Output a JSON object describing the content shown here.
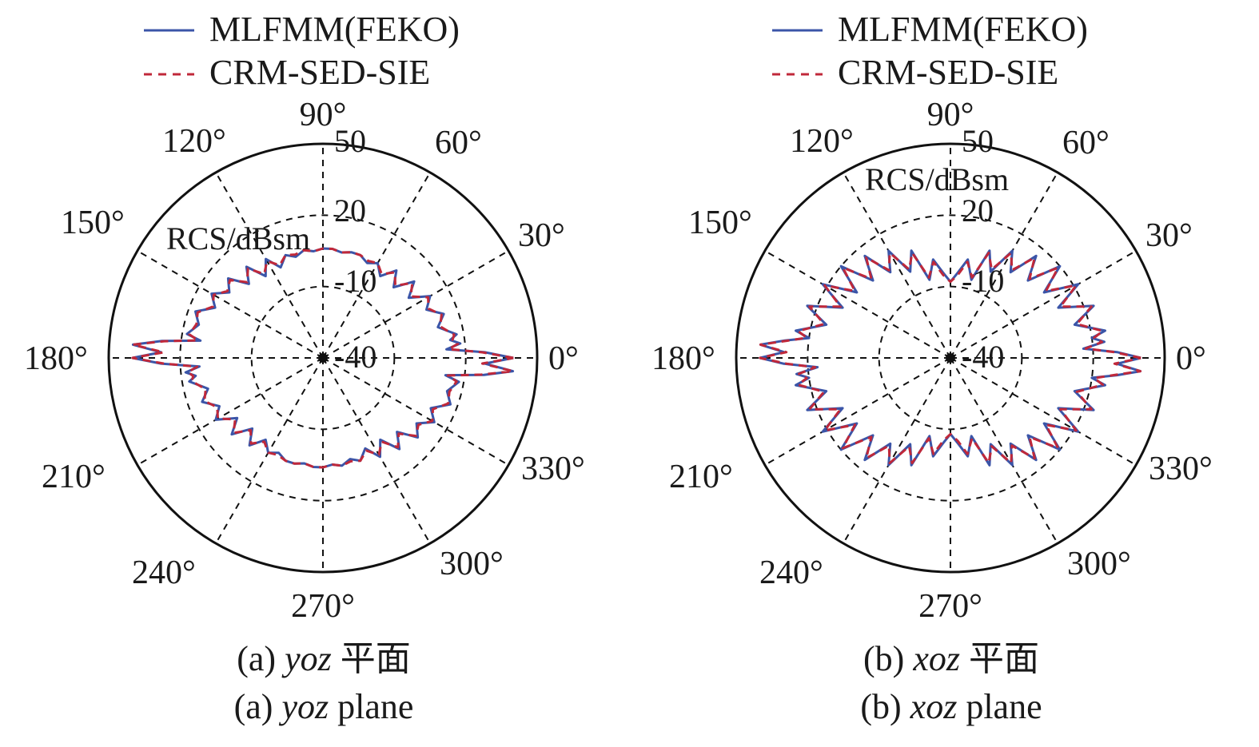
{
  "colors": {
    "mlfmm": "#3b55a8",
    "crm": "#c0283a",
    "axis": "#111111",
    "grid": "#111111"
  },
  "legend": {
    "mlfmm_label": "MLFMM(FEKO)",
    "crm_label": "CRM-SED-SIE"
  },
  "chart_data": [
    {
      "type": "polar-line",
      "id": "a",
      "angle_ticks": [
        "0°",
        "30°",
        "60°",
        "90°",
        "120°",
        "150°",
        "180°",
        "210°",
        "240°",
        "270°",
        "300°",
        "330°"
      ],
      "angle_values": [
        0,
        30,
        60,
        90,
        120,
        150,
        180,
        210,
        240,
        270,
        300,
        330
      ],
      "radial_ticks": [
        "-40",
        "-10",
        "20",
        "50"
      ],
      "radial_values": [
        -40,
        -10,
        20,
        50
      ],
      "radial_range": [
        -40,
        50
      ],
      "radial_label": "RCS/dBsm",
      "grid": true,
      "legend_position": "top",
      "series": [
        {
          "name": "MLFMM(FEKO)",
          "angle_deg": [
            0,
            2,
            4,
            6,
            8,
            10,
            15,
            20,
            25,
            30,
            35,
            40,
            45,
            50,
            55,
            60,
            65,
            70,
            75,
            80,
            85,
            90,
            95,
            100,
            105,
            110,
            115,
            120,
            125,
            130,
            135,
            140,
            145,
            150,
            155,
            160,
            165,
            170,
            172,
            174,
            176,
            178,
            180,
            182,
            184,
            186,
            188,
            190,
            195,
            200,
            205,
            210,
            215,
            220,
            225,
            230,
            235,
            240,
            245,
            250,
            255,
            260,
            265,
            270,
            275,
            280,
            285,
            290,
            295,
            300,
            305,
            310,
            315,
            320,
            325,
            330,
            335,
            340,
            345,
            350,
            352,
            354,
            356,
            358,
            360
          ],
          "rcs_dbsm": [
            40,
            28,
            12,
            18,
            14,
            17,
            10,
            14,
            8,
            12,
            4,
            10,
            2,
            8,
            2,
            6,
            4,
            6,
            6,
            5,
            6,
            6,
            5,
            6,
            4,
            6,
            2,
            8,
            2,
            10,
            4,
            12,
            8,
            14,
            10,
            17,
            14,
            18,
            12,
            28,
            40,
            28,
            40,
            28,
            12,
            18,
            14,
            17,
            10,
            14,
            8,
            12,
            4,
            10,
            2,
            8,
            2,
            6,
            4,
            6,
            6,
            5,
            6,
            6,
            5,
            6,
            4,
            6,
            2,
            8,
            2,
            10,
            4,
            12,
            8,
            14,
            10,
            17,
            14,
            18,
            12,
            28,
            40,
            28,
            40
          ]
        },
        {
          "name": "CRM-SED-SIE",
          "angle_deg": [
            0,
            2,
            4,
            6,
            8,
            10,
            15,
            20,
            25,
            30,
            35,
            40,
            45,
            50,
            55,
            60,
            65,
            70,
            75,
            80,
            85,
            90,
            95,
            100,
            105,
            110,
            115,
            120,
            125,
            130,
            135,
            140,
            145,
            150,
            155,
            160,
            165,
            170,
            172,
            174,
            176,
            178,
            180,
            182,
            184,
            186,
            188,
            190,
            195,
            200,
            205,
            210,
            215,
            220,
            225,
            230,
            235,
            240,
            245,
            250,
            255,
            260,
            265,
            270,
            275,
            280,
            285,
            290,
            295,
            300,
            305,
            310,
            315,
            320,
            325,
            330,
            335,
            340,
            345,
            350,
            352,
            354,
            356,
            358,
            360
          ],
          "rcs_dbsm": [
            40,
            27,
            13,
            17,
            15,
            16,
            11,
            13,
            9,
            11,
            5,
            9,
            3,
            7,
            3,
            6,
            5,
            6,
            6,
            5,
            6,
            6,
            5,
            6,
            5,
            6,
            3,
            7,
            3,
            9,
            5,
            11,
            9,
            13,
            11,
            16,
            15,
            17,
            13,
            27,
            40,
            27,
            40,
            27,
            13,
            17,
            15,
            16,
            11,
            13,
            9,
            11,
            5,
            9,
            3,
            7,
            3,
            6,
            5,
            6,
            6,
            5,
            6,
            6,
            5,
            6,
            5,
            6,
            3,
            7,
            3,
            9,
            5,
            11,
            9,
            13,
            11,
            16,
            15,
            17,
            13,
            27,
            40,
            27,
            40
          ]
        }
      ]
    },
    {
      "type": "polar-line",
      "id": "b",
      "angle_ticks": [
        "0°",
        "30°",
        "60°",
        "90°",
        "120°",
        "150°",
        "180°",
        "210°",
        "240°",
        "270°",
        "300°",
        "330°"
      ],
      "angle_values": [
        0,
        30,
        60,
        90,
        120,
        150,
        180,
        210,
        240,
        270,
        300,
        330
      ],
      "radial_ticks": [
        "-40",
        "-10",
        "20",
        "50"
      ],
      "radial_values": [
        -40,
        -10,
        20,
        50
      ],
      "radial_range": [
        -40,
        50
      ],
      "radial_label": "RCS/dBsm",
      "grid": true,
      "legend_position": "top",
      "series": [
        {
          "name": "MLFMM(FEKO)",
          "angle_deg": [
            0,
            2,
            4,
            6,
            8,
            10,
            15,
            20,
            25,
            30,
            35,
            40,
            45,
            50,
            55,
            60,
            65,
            70,
            75,
            80,
            85,
            90,
            95,
            100,
            105,
            110,
            115,
            120,
            125,
            130,
            135,
            140,
            145,
            150,
            155,
            160,
            165,
            170,
            172,
            174,
            176,
            178,
            180,
            182,
            184,
            186,
            188,
            190,
            195,
            200,
            205,
            210,
            215,
            220,
            225,
            230,
            235,
            240,
            245,
            250,
            255,
            260,
            265,
            270,
            275,
            280,
            285,
            290,
            295,
            300,
            305,
            310,
            315,
            320,
            325,
            330,
            335,
            340,
            345,
            350,
            352,
            354,
            356,
            358,
            360
          ],
          "rcs_dbsm": [
            40,
            30,
            16,
            25,
            20,
            26,
            14,
            24,
            10,
            22,
            8,
            20,
            6,
            16,
            4,
            12,
            0,
            8,
            -6,
            2,
            -4,
            -8,
            -4,
            2,
            -6,
            8,
            0,
            12,
            4,
            16,
            6,
            20,
            8,
            22,
            10,
            24,
            14,
            26,
            20,
            30,
            40,
            30,
            40,
            30,
            16,
            25,
            20,
            26,
            14,
            24,
            10,
            22,
            8,
            20,
            6,
            16,
            4,
            12,
            0,
            8,
            -6,
            2,
            -4,
            -8,
            -4,
            2,
            -6,
            8,
            0,
            12,
            4,
            16,
            6,
            20,
            8,
            22,
            10,
            24,
            14,
            26,
            20,
            30,
            40,
            30,
            40
          ]
        },
        {
          "name": "CRM-SED-SIE",
          "angle_deg": [
            0,
            2,
            4,
            6,
            8,
            10,
            15,
            20,
            25,
            30,
            35,
            40,
            45,
            50,
            55,
            60,
            65,
            70,
            75,
            80,
            85,
            90,
            95,
            100,
            105,
            110,
            115,
            120,
            125,
            130,
            135,
            140,
            145,
            150,
            155,
            160,
            165,
            170,
            172,
            174,
            176,
            178,
            180,
            182,
            184,
            186,
            188,
            190,
            195,
            200,
            205,
            210,
            215,
            220,
            225,
            230,
            235,
            240,
            245,
            250,
            255,
            260,
            265,
            270,
            275,
            280,
            285,
            290,
            295,
            300,
            305,
            310,
            315,
            320,
            325,
            330,
            335,
            340,
            345,
            350,
            352,
            354,
            356,
            358,
            360
          ],
          "rcs_dbsm": [
            40,
            29,
            17,
            24,
            21,
            25,
            15,
            23,
            11,
            21,
            9,
            19,
            7,
            15,
            5,
            11,
            1,
            7,
            -5,
            1,
            -5,
            -8,
            -5,
            1,
            -5,
            7,
            1,
            11,
            5,
            15,
            7,
            19,
            9,
            21,
            11,
            23,
            15,
            25,
            21,
            29,
            40,
            29,
            40,
            29,
            17,
            24,
            21,
            25,
            15,
            23,
            11,
            21,
            9,
            19,
            7,
            15,
            5,
            11,
            1,
            7,
            -5,
            1,
            -5,
            -8,
            -5,
            1,
            -5,
            7,
            1,
            11,
            5,
            15,
            7,
            19,
            9,
            21,
            11,
            23,
            15,
            25,
            21,
            29,
            40,
            29,
            40
          ]
        }
      ]
    }
  ],
  "captions": [
    {
      "cn_prefix": "(a) ",
      "cn_var": "yoz",
      "cn_suffix": " 平面",
      "en_prefix": "(a) ",
      "en_var": "yoz",
      "en_suffix": " plane"
    },
    {
      "cn_prefix": "(b) ",
      "cn_var": "xoz",
      "cn_suffix": " 平面",
      "en_prefix": "(b) ",
      "en_var": "xoz",
      "en_suffix": " plane"
    }
  ]
}
